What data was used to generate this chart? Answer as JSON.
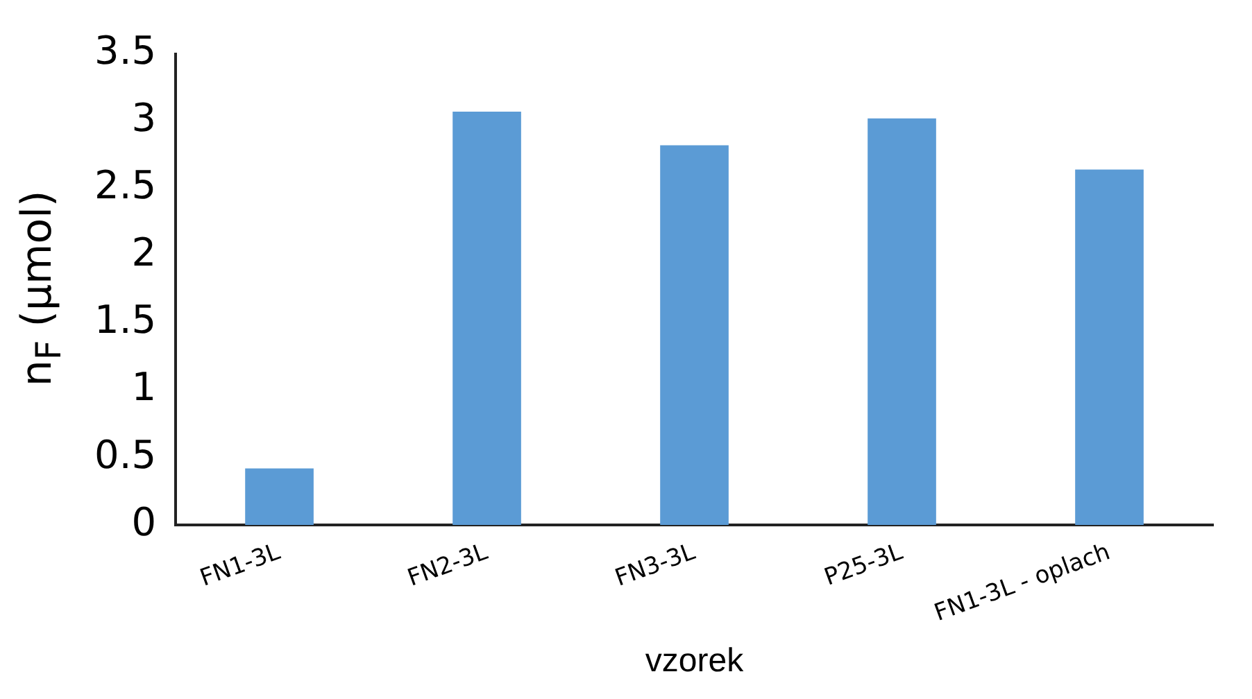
{
  "chart_data": {
    "type": "bar",
    "xlabel": "vzorek",
    "ylabel": "n$_{F}$ (μmol)",
    "categories": [
      "FN1-3L",
      "FN2-3L",
      "FN3-3L",
      "P25-3L",
      "FN1-3L - oplach"
    ],
    "values": [
      0.42,
      3.07,
      2.82,
      3.02,
      2.64
    ],
    "color": "#5b9bd5",
    "ylim": [
      0,
      3.5
    ],
    "yticks": [
      0,
      0.5,
      1,
      1.5,
      2,
      2.5,
      3,
      3.5
    ],
    "grid": false,
    "legend": false
  }
}
